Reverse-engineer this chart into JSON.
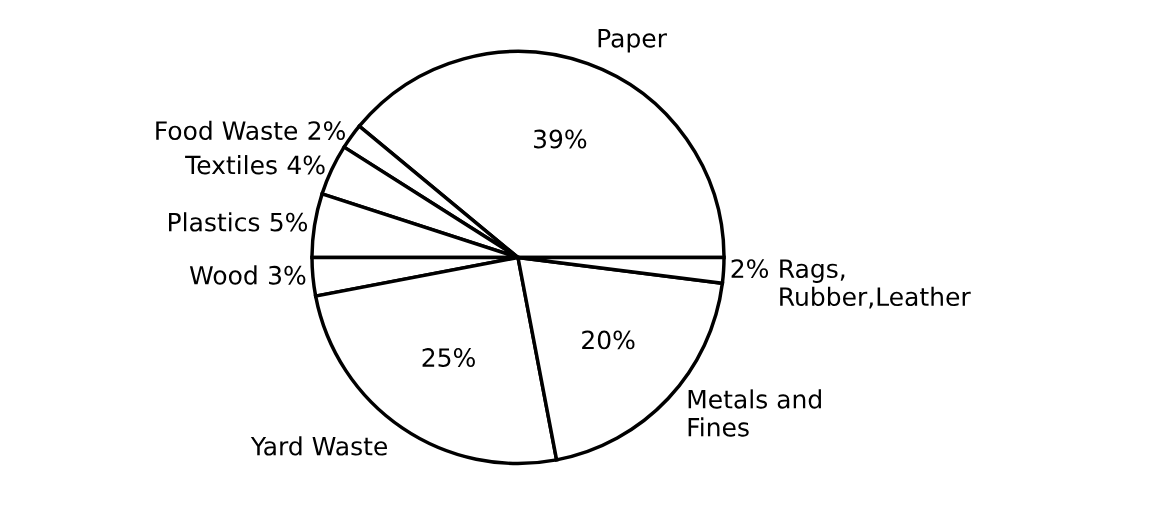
{
  "chart_data": {
    "type": "pie",
    "categories": [
      "Paper",
      "Food Waste",
      "Textiles",
      "Plastics",
      "Wood",
      "Yard Waste",
      "Metals and\nFines",
      "Rags,\nRubber,Leather"
    ],
    "values": [
      39,
      2,
      4,
      5,
      3,
      25,
      20,
      2
    ],
    "colors": [
      "#ffffff",
      "#ffffff",
      "#ffffff",
      "#ffffff",
      "#ffffff",
      "#ffffff",
      "#ffffff",
      "#ffffff"
    ],
    "value_labels": [
      "39%",
      "2%",
      "4%",
      "5%",
      "3%",
      "25%",
      "20%",
      "2%"
    ]
  }
}
